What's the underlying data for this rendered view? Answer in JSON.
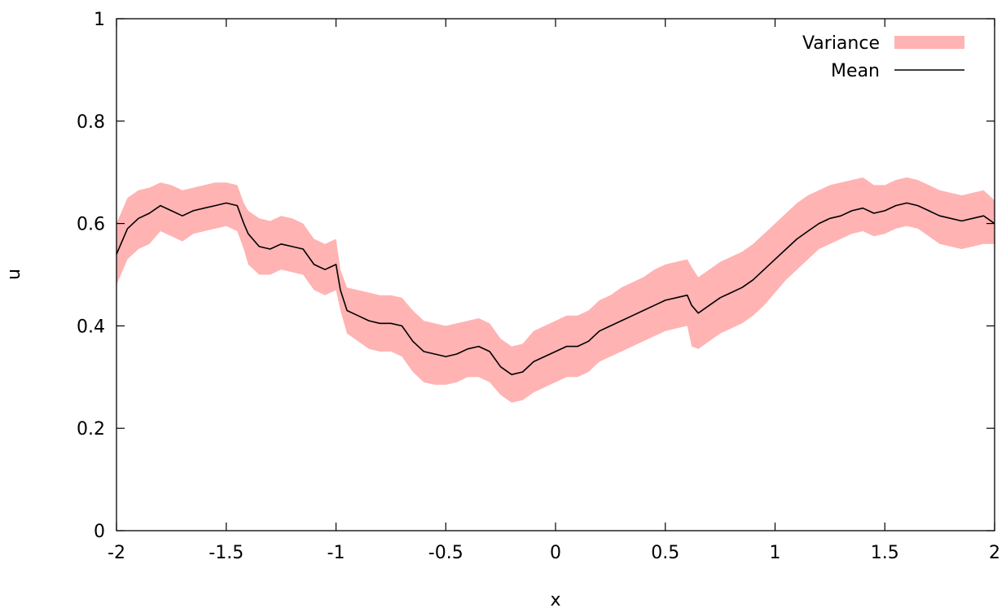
{
  "chart_data": {
    "type": "area",
    "xlabel": "x",
    "ylabel": "u",
    "xlim": [
      -2,
      2
    ],
    "ylim": [
      0,
      1
    ],
    "xticks": [
      {
        "value": -2,
        "label": "-2"
      },
      {
        "value": -1.5,
        "label": "-1.5"
      },
      {
        "value": -1,
        "label": "-1"
      },
      {
        "value": -0.5,
        "label": "-0.5"
      },
      {
        "value": 0,
        "label": "0"
      },
      {
        "value": 0.5,
        "label": "0.5"
      },
      {
        "value": 1,
        "label": "1"
      },
      {
        "value": 1.5,
        "label": "1.5"
      },
      {
        "value": 2,
        "label": "2"
      }
    ],
    "yticks": [
      {
        "value": 0,
        "label": "0"
      },
      {
        "value": 0.2,
        "label": "0.2"
      },
      {
        "value": 0.4,
        "label": "0.4"
      },
      {
        "value": 0.6,
        "label": "0.6"
      },
      {
        "value": 0.8,
        "label": "0.8"
      },
      {
        "value": 1,
        "label": "1"
      }
    ],
    "grid": false,
    "legend": "top-right",
    "x": [
      -2.0,
      -1.95,
      -1.9,
      -1.85,
      -1.8,
      -1.75,
      -1.7,
      -1.65,
      -1.6,
      -1.55,
      -1.5,
      -1.45,
      -1.42,
      -1.4,
      -1.35,
      -1.3,
      -1.25,
      -1.2,
      -1.15,
      -1.1,
      -1.05,
      -1.0,
      -0.98,
      -0.95,
      -0.9,
      -0.85,
      -0.8,
      -0.75,
      -0.7,
      -0.65,
      -0.6,
      -0.55,
      -0.5,
      -0.45,
      -0.4,
      -0.35,
      -0.3,
      -0.25,
      -0.2,
      -0.15,
      -0.1,
      -0.05,
      0.0,
      0.05,
      0.1,
      0.15,
      0.2,
      0.25,
      0.3,
      0.35,
      0.4,
      0.45,
      0.5,
      0.55,
      0.6,
      0.62,
      0.65,
      0.7,
      0.75,
      0.8,
      0.85,
      0.9,
      0.95,
      1.0,
      1.05,
      1.1,
      1.15,
      1.2,
      1.25,
      1.3,
      1.35,
      1.4,
      1.45,
      1.5,
      1.55,
      1.6,
      1.65,
      1.7,
      1.75,
      1.8,
      1.85,
      1.9,
      1.95,
      2.0
    ],
    "series": [
      {
        "name": "Mean",
        "color": "#000000",
        "values": [
          0.54,
          0.59,
          0.61,
          0.62,
          0.635,
          0.625,
          0.615,
          0.625,
          0.63,
          0.635,
          0.64,
          0.635,
          0.6,
          0.58,
          0.555,
          0.55,
          0.56,
          0.555,
          0.55,
          0.52,
          0.51,
          0.52,
          0.47,
          0.43,
          0.42,
          0.41,
          0.405,
          0.405,
          0.4,
          0.37,
          0.35,
          0.345,
          0.34,
          0.345,
          0.355,
          0.36,
          0.35,
          0.32,
          0.305,
          0.31,
          0.33,
          0.34,
          0.35,
          0.36,
          0.36,
          0.37,
          0.39,
          0.4,
          0.41,
          0.42,
          0.43,
          0.44,
          0.45,
          0.455,
          0.46,
          0.44,
          0.425,
          0.44,
          0.455,
          0.465,
          0.475,
          0.49,
          0.51,
          0.53,
          0.55,
          0.57,
          0.585,
          0.6,
          0.61,
          0.615,
          0.625,
          0.63,
          0.62,
          0.625,
          0.635,
          0.64,
          0.635,
          0.625,
          0.615,
          0.61,
          0.605,
          0.61,
          0.615,
          0.6
        ]
      },
      {
        "name": "Variance",
        "color": "#ffb3b3",
        "lower": [
          0.48,
          0.53,
          0.55,
          0.56,
          0.585,
          0.575,
          0.565,
          0.58,
          0.585,
          0.59,
          0.595,
          0.585,
          0.55,
          0.52,
          0.5,
          0.5,
          0.51,
          0.505,
          0.5,
          0.47,
          0.46,
          0.47,
          0.43,
          0.385,
          0.37,
          0.355,
          0.35,
          0.35,
          0.34,
          0.31,
          0.29,
          0.285,
          0.285,
          0.29,
          0.3,
          0.3,
          0.29,
          0.265,
          0.25,
          0.255,
          0.27,
          0.28,
          0.29,
          0.3,
          0.3,
          0.31,
          0.33,
          0.34,
          0.35,
          0.36,
          0.37,
          0.38,
          0.39,
          0.395,
          0.4,
          0.36,
          0.355,
          0.37,
          0.385,
          0.395,
          0.405,
          0.42,
          0.44,
          0.465,
          0.49,
          0.51,
          0.53,
          0.55,
          0.56,
          0.57,
          0.58,
          0.585,
          0.575,
          0.58,
          0.59,
          0.595,
          0.59,
          0.575,
          0.56,
          0.555,
          0.55,
          0.555,
          0.56,
          0.56
        ],
        "upper": [
          0.6,
          0.65,
          0.665,
          0.67,
          0.68,
          0.675,
          0.665,
          0.67,
          0.675,
          0.68,
          0.68,
          0.675,
          0.64,
          0.625,
          0.61,
          0.605,
          0.615,
          0.61,
          0.6,
          0.57,
          0.56,
          0.57,
          0.51,
          0.475,
          0.47,
          0.465,
          0.46,
          0.46,
          0.455,
          0.43,
          0.41,
          0.405,
          0.4,
          0.405,
          0.41,
          0.415,
          0.405,
          0.375,
          0.36,
          0.365,
          0.39,
          0.4,
          0.41,
          0.42,
          0.42,
          0.43,
          0.45,
          0.46,
          0.475,
          0.485,
          0.495,
          0.51,
          0.52,
          0.525,
          0.53,
          0.515,
          0.495,
          0.51,
          0.525,
          0.535,
          0.545,
          0.56,
          0.58,
          0.6,
          0.62,
          0.64,
          0.655,
          0.665,
          0.675,
          0.68,
          0.685,
          0.69,
          0.675,
          0.675,
          0.685,
          0.69,
          0.685,
          0.675,
          0.665,
          0.66,
          0.655,
          0.66,
          0.665,
          0.645
        ]
      }
    ]
  }
}
